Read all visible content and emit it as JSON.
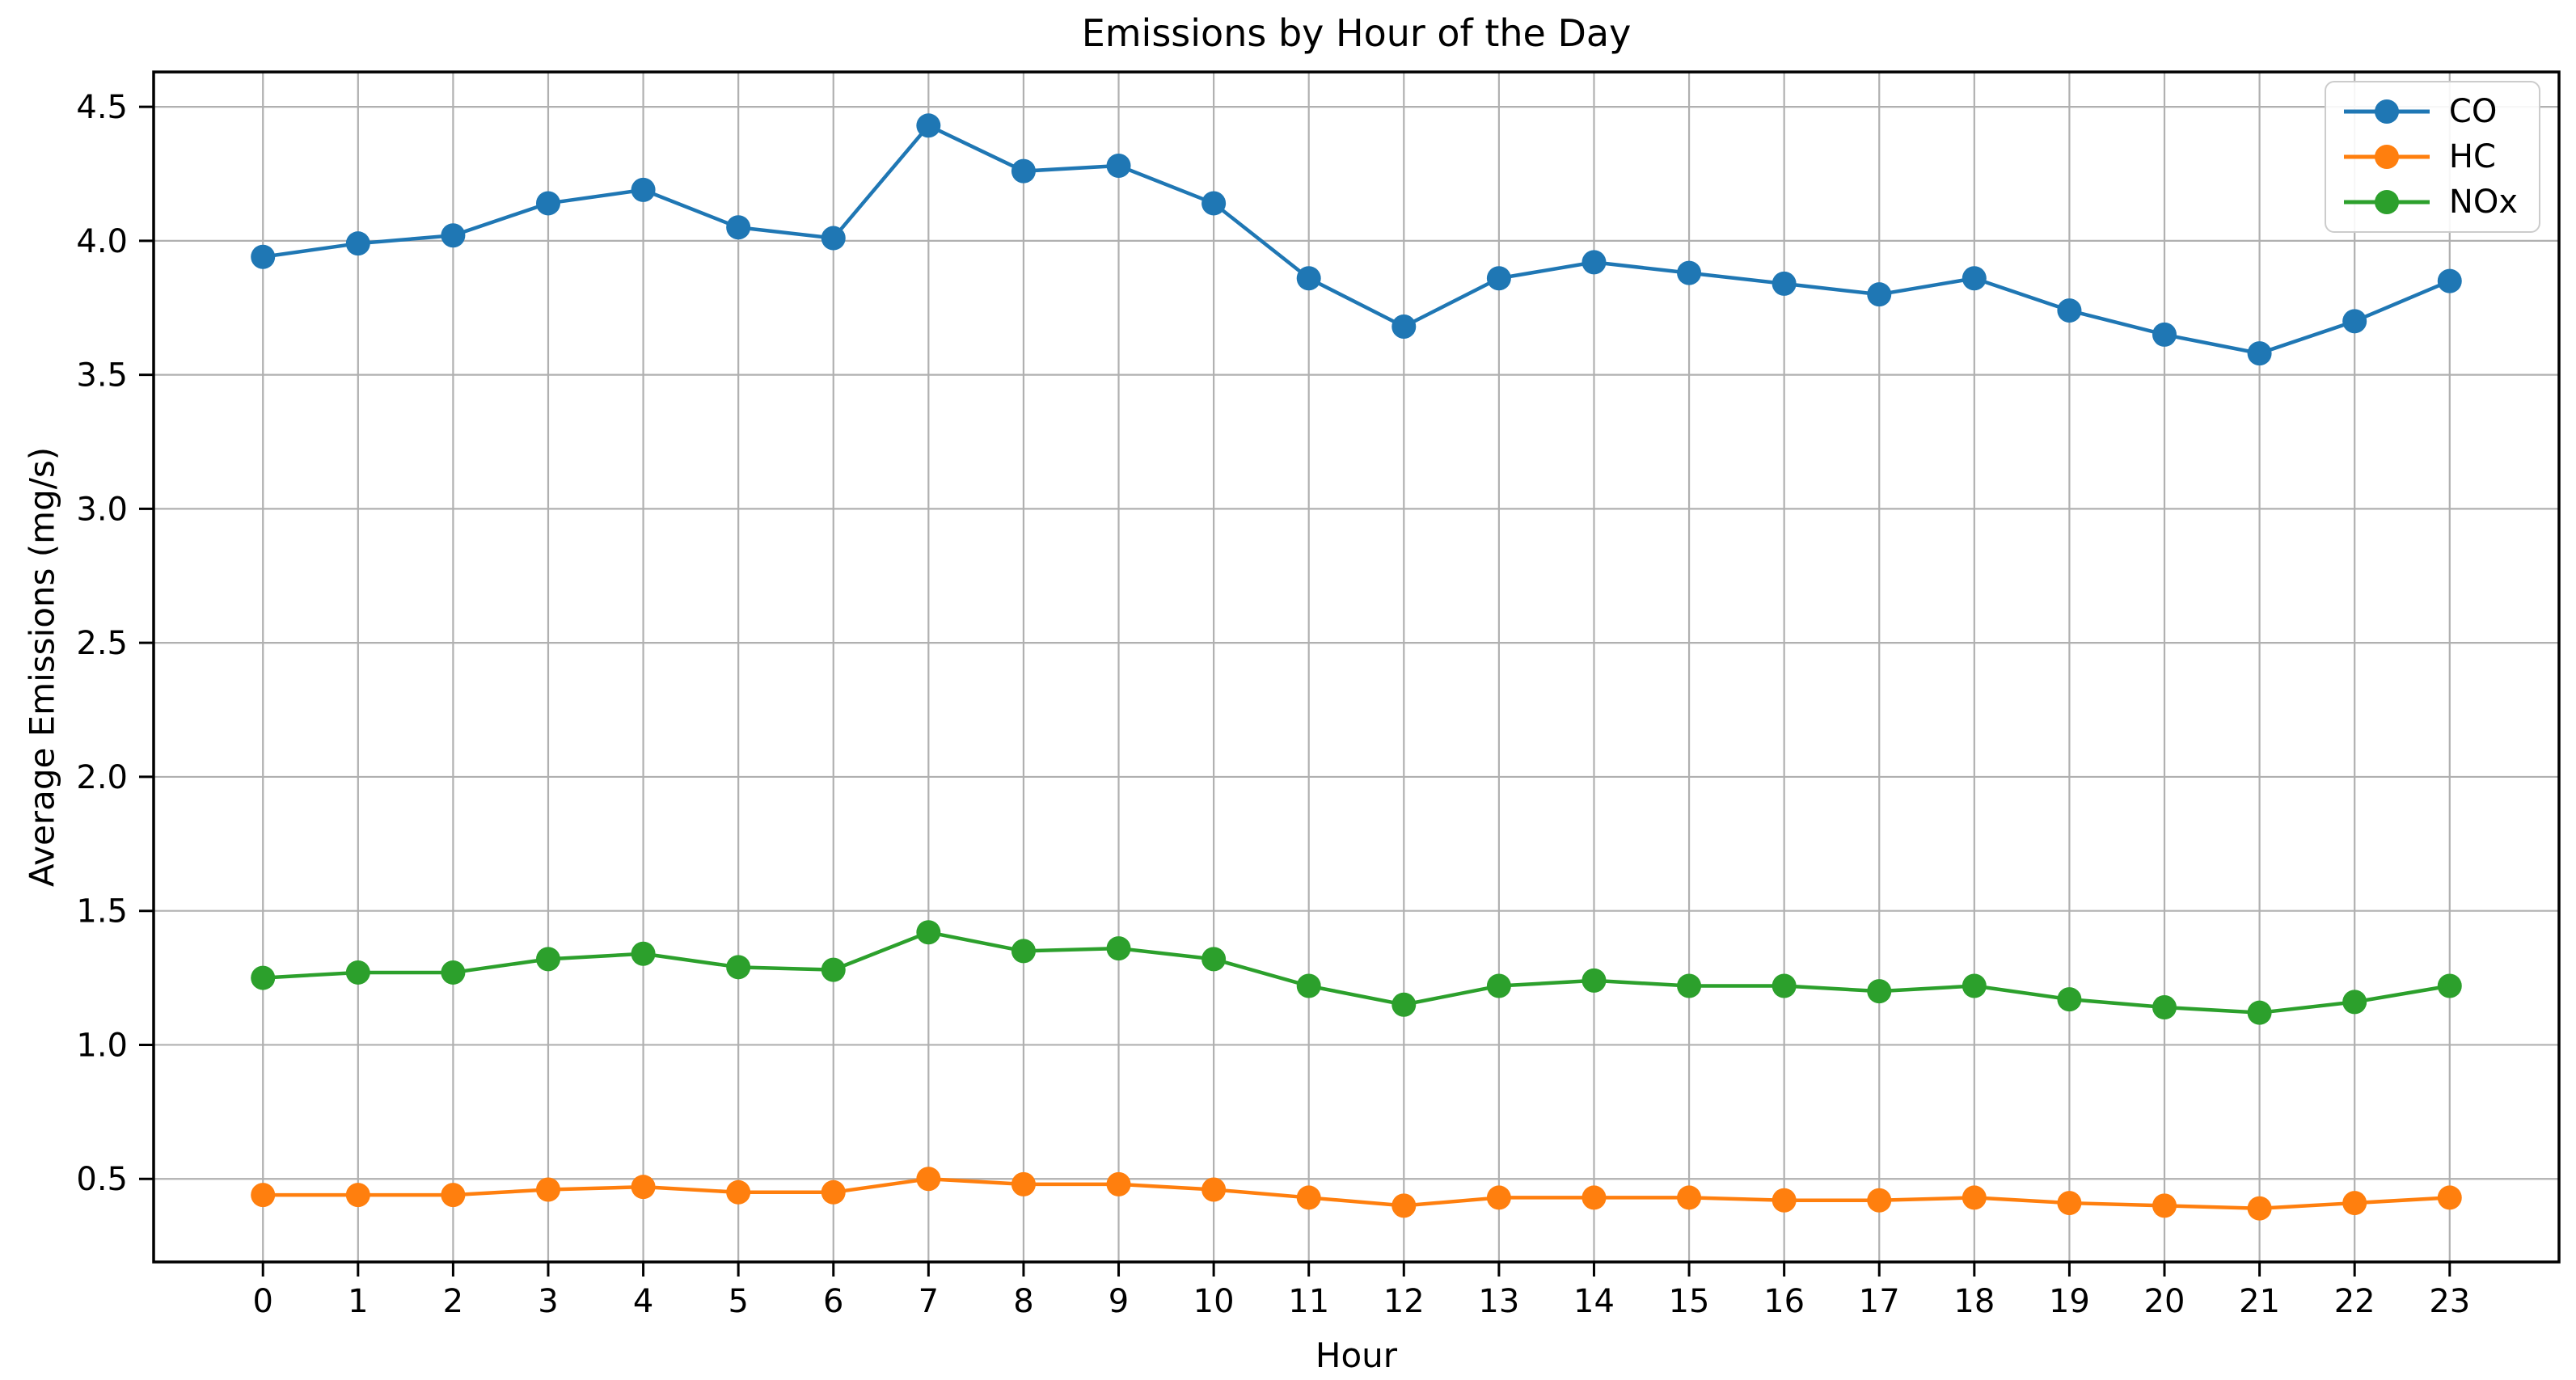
{
  "chart_data": {
    "type": "line",
    "title": "Emissions by Hour of the Day",
    "xlabel": "Hour",
    "ylabel": "Average Emissions (mg/s)",
    "x": [
      0,
      1,
      2,
      3,
      4,
      5,
      6,
      7,
      8,
      9,
      10,
      11,
      12,
      13,
      14,
      15,
      16,
      17,
      18,
      19,
      20,
      21,
      22,
      23
    ],
    "series": [
      {
        "name": "CO",
        "color": "#1f77b4",
        "values": [
          3.94,
          3.99,
          4.02,
          4.14,
          4.19,
          4.05,
          4.01,
          4.43,
          4.26,
          4.28,
          4.14,
          3.86,
          3.68,
          3.86,
          3.92,
          3.88,
          3.84,
          3.8,
          3.86,
          3.74,
          3.65,
          3.58,
          3.7,
          3.85
        ]
      },
      {
        "name": "HC",
        "color": "#ff7f0e",
        "values": [
          0.44,
          0.44,
          0.44,
          0.46,
          0.47,
          0.45,
          0.45,
          0.5,
          0.48,
          0.48,
          0.46,
          0.43,
          0.4,
          0.43,
          0.43,
          0.43,
          0.42,
          0.42,
          0.43,
          0.41,
          0.4,
          0.39,
          0.41,
          0.43
        ]
      },
      {
        "name": "NOx",
        "color": "#2ca02c",
        "values": [
          1.25,
          1.27,
          1.27,
          1.32,
          1.34,
          1.29,
          1.28,
          1.42,
          1.35,
          1.36,
          1.32,
          1.22,
          1.15,
          1.22,
          1.24,
          1.22,
          1.22,
          1.2,
          1.22,
          1.17,
          1.14,
          1.12,
          1.16,
          1.22
        ]
      }
    ],
    "xticks": [
      0,
      1,
      2,
      3,
      4,
      5,
      6,
      7,
      8,
      9,
      10,
      11,
      12,
      13,
      14,
      15,
      16,
      17,
      18,
      19,
      20,
      21,
      22,
      23
    ],
    "yticks": [
      0.5,
      1.0,
      1.5,
      2.0,
      2.5,
      3.0,
      3.5,
      4.0,
      4.5
    ],
    "xlim": [
      -1.15,
      24.15
    ],
    "ylim": [
      0.19,
      4.63
    ],
    "grid": true,
    "grid_color": "#b0b0b0",
    "axis_color": "#000000",
    "background": "#ffffff",
    "legend_position": "upper right"
  }
}
